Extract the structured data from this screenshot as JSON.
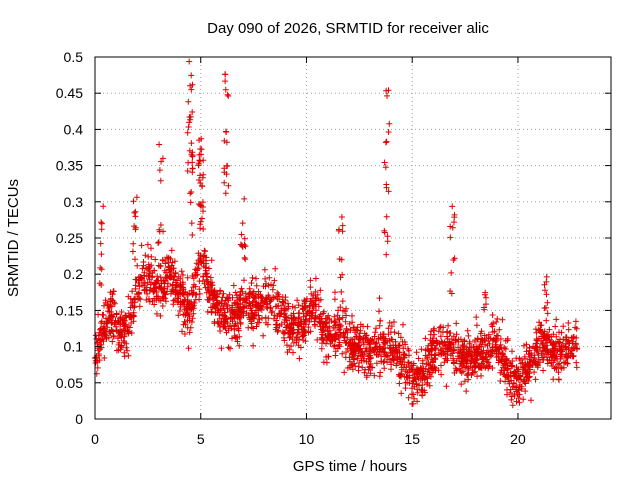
{
  "chart_data": {
    "type": "scatter",
    "title": "Day 090 of 2026, SRMTID for receiver alic",
    "xlabel": "GPS time / hours",
    "ylabel": "SRMTID / TECUs",
    "xlim": [
      0,
      24.4
    ],
    "ylim": [
      0,
      0.5
    ],
    "x_ticks": [
      0,
      5,
      10,
      15,
      20
    ],
    "x_tick_labels": [
      "0",
      "5",
      "10",
      "15",
      "20"
    ],
    "y_ticks": [
      0,
      0.05,
      0.1,
      0.15,
      0.2,
      0.25,
      0.3,
      0.35,
      0.4,
      0.45,
      0.5
    ],
    "y_tick_labels": [
      "0",
      "0.05",
      "0.1",
      "0.15",
      "0.2",
      "0.25",
      "0.3",
      "0.35",
      "0.4",
      "0.45",
      "0.5"
    ],
    "grid": true,
    "marker": "+",
    "series": [
      {
        "name": "SRMTID",
        "color": "#e00000",
        "profile": {
          "x": [
            0.0,
            0.3,
            0.6,
            1.0,
            1.5,
            2.0,
            2.5,
            3.0,
            3.5,
            4.0,
            4.5,
            5.0,
            5.5,
            6.0,
            6.5,
            7.0,
            7.5,
            8.0,
            8.5,
            9.0,
            9.5,
            10.0,
            10.5,
            11.0,
            11.5,
            12.0,
            12.5,
            13.0,
            13.5,
            14.0,
            14.5,
            15.0,
            15.5,
            16.0,
            16.5,
            17.0,
            17.5,
            18.0,
            18.5,
            19.0,
            19.5,
            20.0,
            20.5,
            21.0,
            21.5,
            22.0,
            22.5,
            22.8
          ],
          "y": [
            0.08,
            0.11,
            0.15,
            0.13,
            0.12,
            0.18,
            0.2,
            0.17,
            0.2,
            0.17,
            0.15,
            0.22,
            0.17,
            0.15,
            0.14,
            0.16,
            0.15,
            0.17,
            0.15,
            0.13,
            0.12,
            0.14,
            0.15,
            0.11,
            0.13,
            0.1,
            0.1,
            0.09,
            0.1,
            0.1,
            0.08,
            0.06,
            0.06,
            0.09,
            0.1,
            0.1,
            0.08,
            0.09,
            0.1,
            0.1,
            0.07,
            0.05,
            0.07,
            0.11,
            0.1,
            0.09,
            0.1,
            0.1
          ]
        },
        "scatter_spread": 0.045,
        "point_count": 2400,
        "bursts": [
          {
            "x": 0.3,
            "y_min": 0.17,
            "y_max": 0.3,
            "count": 10
          },
          {
            "x": 1.9,
            "y_min": 0.2,
            "y_max": 0.31,
            "count": 12
          },
          {
            "x": 3.1,
            "y_min": 0.2,
            "y_max": 0.4,
            "count": 16
          },
          {
            "x": 4.5,
            "y_min": 0.25,
            "y_max": 0.5,
            "count": 30
          },
          {
            "x": 5.0,
            "y_min": 0.26,
            "y_max": 0.39,
            "count": 30
          },
          {
            "x": 6.2,
            "y_min": 0.3,
            "y_max": 0.48,
            "count": 18
          },
          {
            "x": 7.0,
            "y_min": 0.2,
            "y_max": 0.32,
            "count": 12
          },
          {
            "x": 11.6,
            "y_min": 0.15,
            "y_max": 0.29,
            "count": 12
          },
          {
            "x": 13.8,
            "y_min": 0.15,
            "y_max": 0.46,
            "count": 18
          },
          {
            "x": 16.9,
            "y_min": 0.17,
            "y_max": 0.3,
            "count": 12
          },
          {
            "x": 18.4,
            "y_min": 0.14,
            "y_max": 0.2,
            "count": 6
          },
          {
            "x": 21.3,
            "y_min": 0.15,
            "y_max": 0.2,
            "count": 8
          }
        ]
      }
    ]
  }
}
